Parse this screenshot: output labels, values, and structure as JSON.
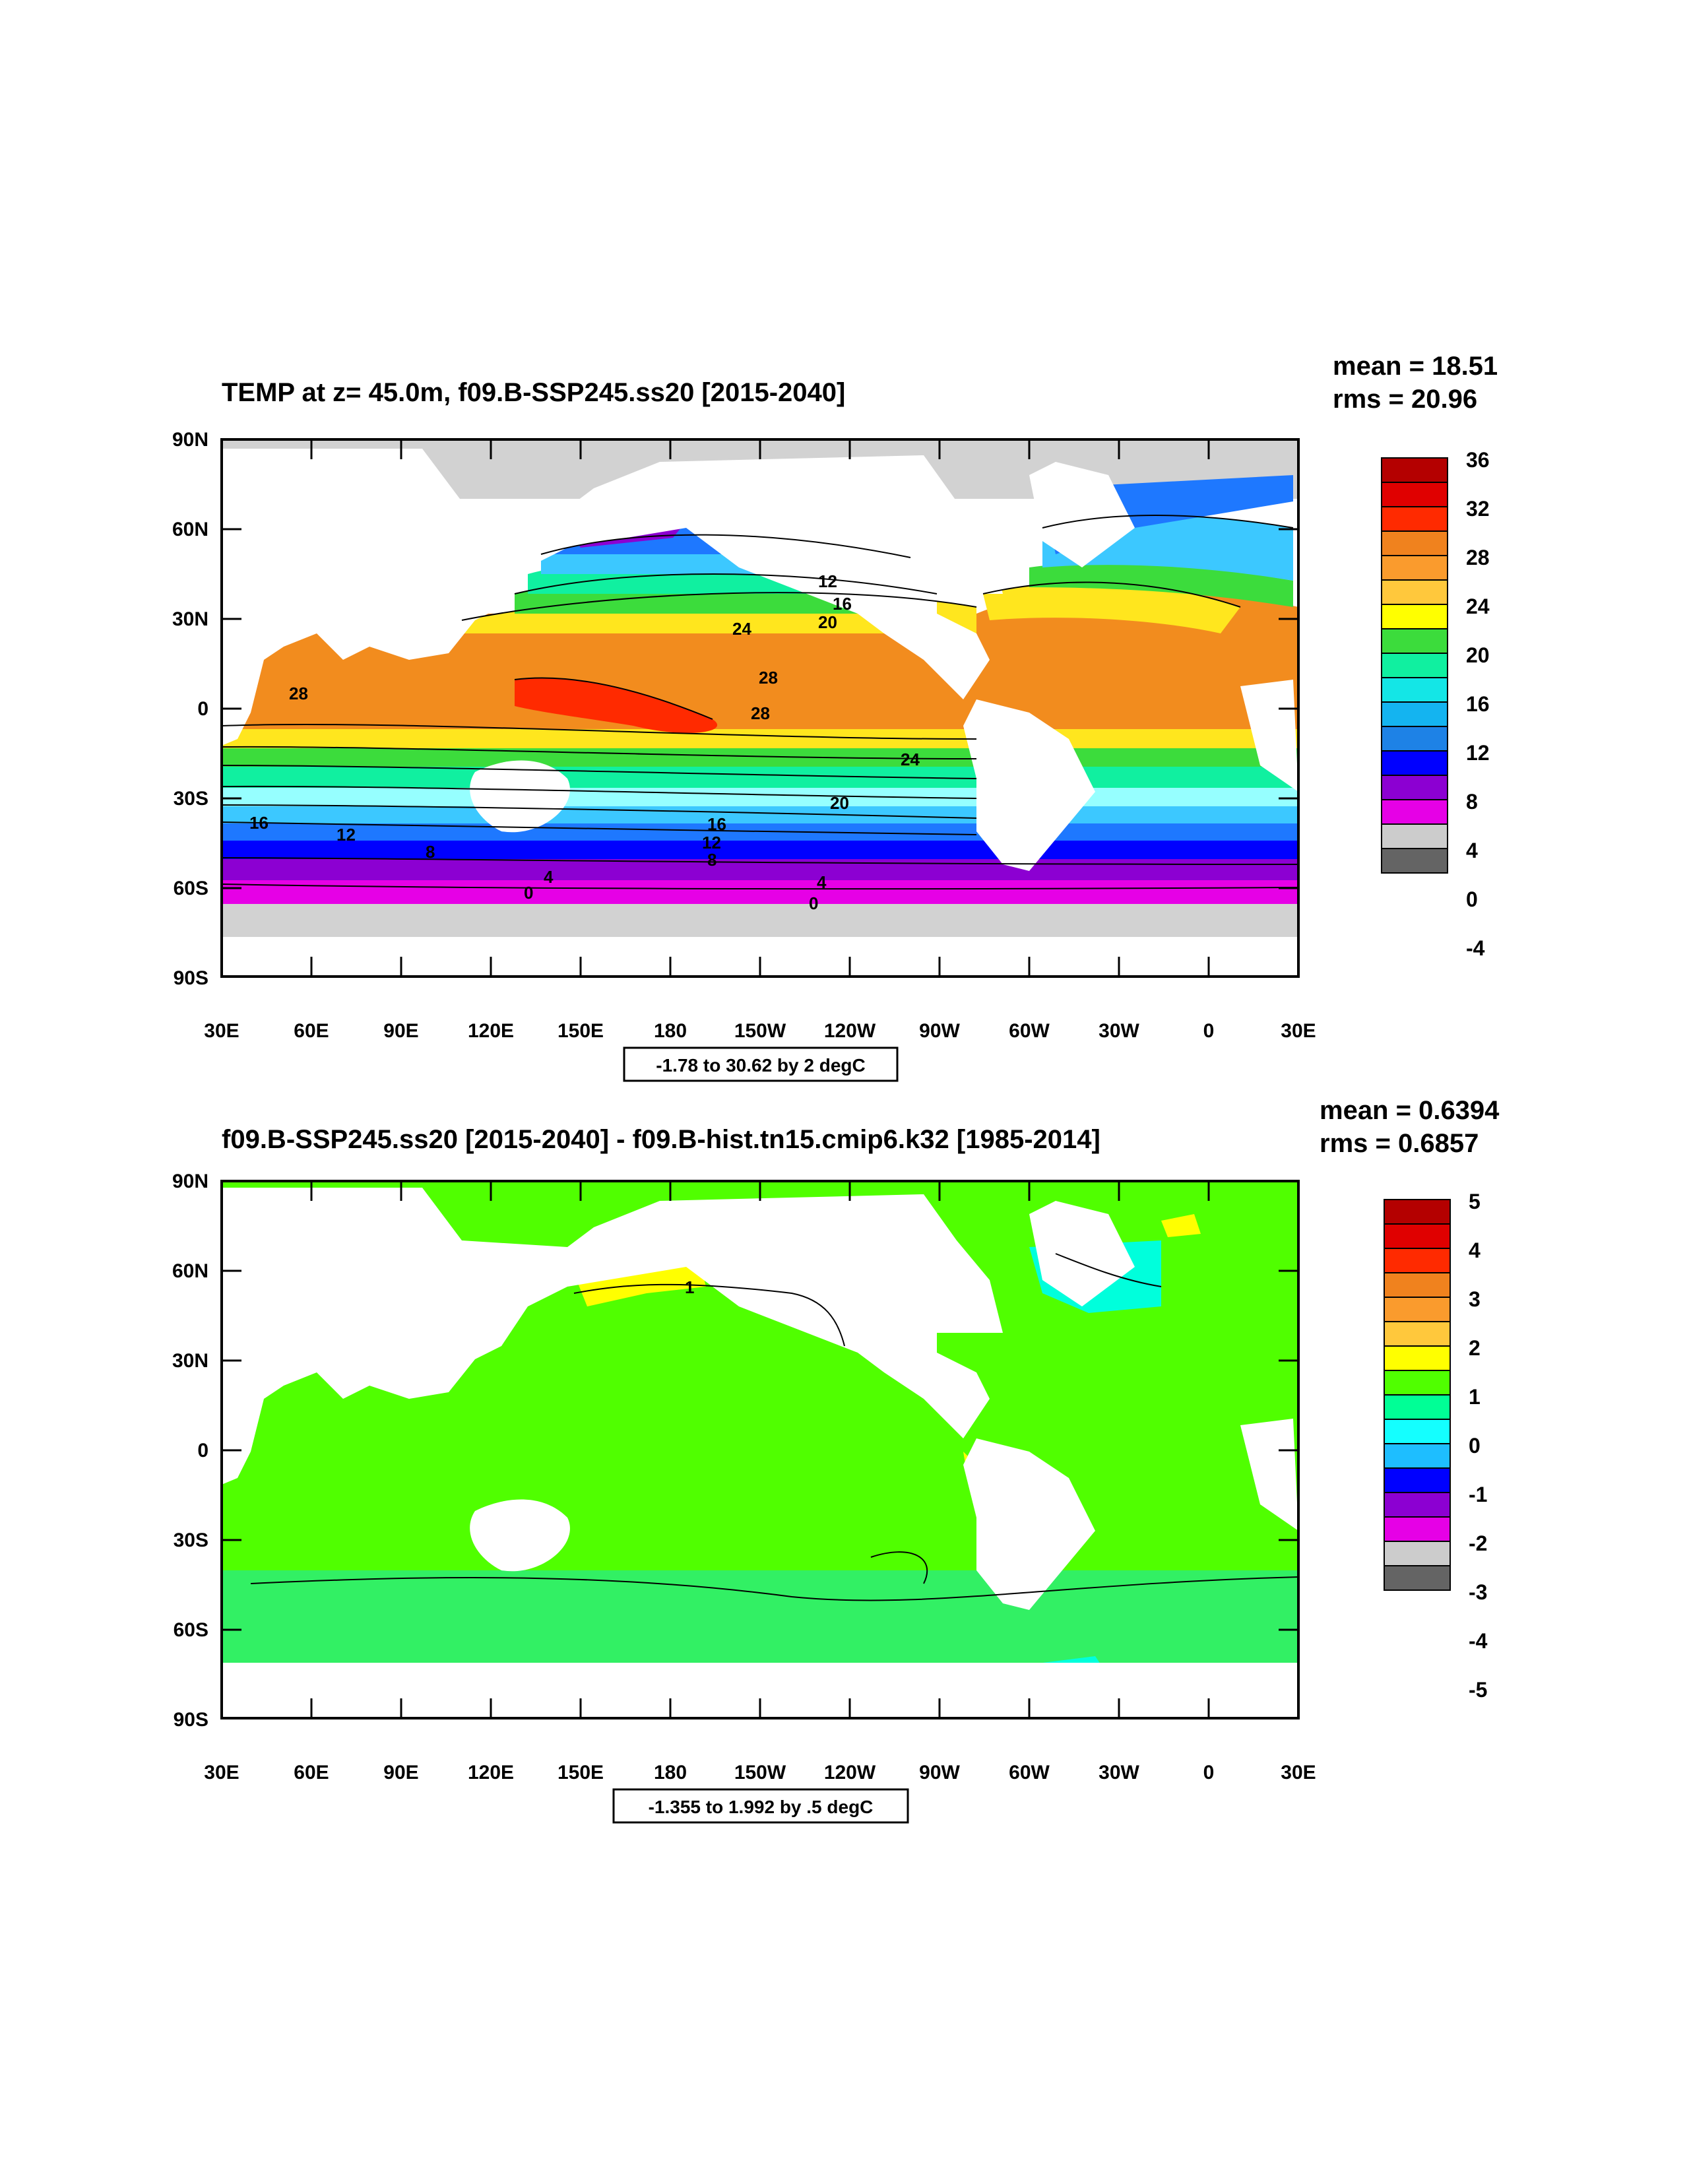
{
  "panels": [
    {
      "title": "TEMP at z=  45.0m, f09.B-SSP245.ss20 [2015-2040]",
      "stats": {
        "mean": "mean = 18.51",
        "rms": "rms = 20.96"
      },
      "contour_info": "-1.78 to 30.62 by 2 degC",
      "colorbar": {
        "labels": [
          "36",
          "32",
          "28",
          "24",
          "20",
          "16",
          "12",
          "8",
          "4",
          "0",
          "-4"
        ],
        "colors": [
          "#b40000",
          "#e00000",
          "#ff2a00",
          "#f0821e",
          "#fa9b2d",
          "#ffc83c",
          "#ffff00",
          "#3cdc3c",
          "#10f0a0",
          "#14e6e6",
          "#14b4f0",
          "#1e82e6",
          "#0000ff",
          "#8c00d2",
          "#e600e6",
          "#cccccc",
          "#646464"
        ]
      },
      "map_fill": {
        "cold": "#d2d2d2",
        "temperate": "#1ec8a0",
        "subtropical": "#ffe61e",
        "tropical": "#f28c1e",
        "warm_pool": "#ff2a00",
        "southern_ocean_bands": [
          "#96ffff",
          "#3cc8ff",
          "#1e78ff",
          "#0000ff",
          "#8c00d2",
          "#e600e6"
        ]
      },
      "contour_labels": [
        "28",
        "24",
        "20",
        "16",
        "12",
        "28",
        "28",
        "24",
        "20",
        "16",
        "12",
        "8",
        "16",
        "12",
        "8",
        "4",
        "0",
        "4",
        "0"
      ]
    },
    {
      "title": "f09.B-SSP245.ss20 [2015-2040] - f09.B-hist.tn15.cmip6.k32 [1985-2014]",
      "stats": {
        "mean": "mean = 0.6394",
        "rms": "rms = 0.6857"
      },
      "contour_info": "-1.355 to 1.992 by .5 degC",
      "colorbar": {
        "labels": [
          "5",
          "4",
          "3",
          "2",
          "1",
          "0",
          "-1",
          "-2",
          "-3",
          "-4",
          "-5"
        ],
        "colors": [
          "#b40000",
          "#e00000",
          "#ff2a00",
          "#f0821e",
          "#fa9b2d",
          "#ffc83c",
          "#ffff00",
          "#50ff00",
          "#00ff96",
          "#14ffff",
          "#1ebeff",
          "#0000ff",
          "#8c00d2",
          "#e600e6",
          "#cccccc",
          "#646464"
        ]
      },
      "map_fill": {
        "base": "#50ff00",
        "southern": "#32f064",
        "positive": "#ffff00",
        "negative": "#00ffdc"
      },
      "contour_labels": [
        "1"
      ]
    }
  ],
  "axes": {
    "y_ticks": [
      "90N",
      "60N",
      "30N",
      "0",
      "30S",
      "60S",
      "90S"
    ],
    "x_ticks": [
      "30E",
      "60E",
      "90E",
      "120E",
      "150E",
      "180",
      "150W",
      "120W",
      "90W",
      "60W",
      "30W",
      "0",
      "30E"
    ]
  }
}
